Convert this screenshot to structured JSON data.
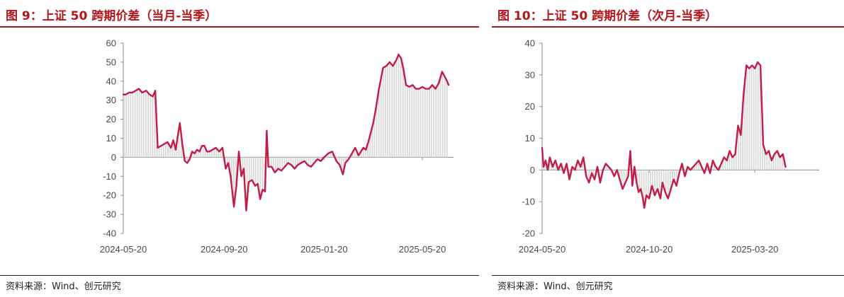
{
  "charts": [
    {
      "title": "图 9：上证 50 跨期价差（当月-当季）",
      "source": "资料来源：Wind、创元研究"
    },
    {
      "title": "图 10：上证 50 跨期价差（次月-当季）",
      "source": "资料来源：Wind、创元研究"
    }
  ],
  "chart_data": [
    {
      "type": "line",
      "title": "图 9：上证 50 跨期价差（当月-当季）",
      "ylim": [
        -40,
        60
      ],
      "yticks": [
        -40,
        -30,
        -20,
        -10,
        0,
        10,
        20,
        30,
        40,
        50,
        60
      ],
      "xlim": [
        "2024-05-20",
        "2025-06-27"
      ],
      "xticks": [
        "2024-05-20",
        "2024-09-20",
        "2025-01-20",
        "2025-05-20"
      ],
      "grid": false,
      "fill": "bars-to-zero",
      "colors": {
        "line": "#c21d49",
        "bars": "#d9d9d9"
      },
      "series": [
        {
          "points": [
            [
              "2024-05-20",
              33
            ],
            [
              "2024-05-23",
              33
            ],
            [
              "2024-05-27",
              34
            ],
            [
              "2024-05-31",
              34
            ],
            [
              "2024-06-04",
              35
            ],
            [
              "2024-06-08",
              36
            ],
            [
              "2024-06-12",
              34
            ],
            [
              "2024-06-17",
              35
            ],
            [
              "2024-06-21",
              33
            ],
            [
              "2024-06-25",
              32
            ],
            [
              "2024-06-28",
              35
            ],
            [
              "2024-07-01",
              5
            ],
            [
              "2024-07-05",
              6
            ],
            [
              "2024-07-09",
              7
            ],
            [
              "2024-07-13",
              8
            ],
            [
              "2024-07-17",
              5
            ],
            [
              "2024-07-20",
              9
            ],
            [
              "2024-07-23",
              4
            ],
            [
              "2024-07-25",
              10
            ],
            [
              "2024-07-28",
              18
            ],
            [
              "2024-07-31",
              7
            ],
            [
              "2024-08-03",
              -2
            ],
            [
              "2024-08-06",
              -3
            ],
            [
              "2024-08-09",
              -1
            ],
            [
              "2024-08-12",
              3
            ],
            [
              "2024-08-15",
              2
            ],
            [
              "2024-08-18",
              4
            ],
            [
              "2024-08-21",
              3
            ],
            [
              "2024-08-24",
              6
            ],
            [
              "2024-08-27",
              6
            ],
            [
              "2024-08-30",
              3
            ],
            [
              "2024-09-02",
              3
            ],
            [
              "2024-09-06",
              4
            ],
            [
              "2024-09-10",
              5
            ],
            [
              "2024-09-14",
              3
            ],
            [
              "2024-09-18",
              5
            ],
            [
              "2024-09-22",
              -6
            ],
            [
              "2024-09-25",
              -3
            ],
            [
              "2024-09-28",
              -10
            ],
            [
              "2024-10-02",
              -26
            ],
            [
              "2024-10-05",
              -15
            ],
            [
              "2024-10-08",
              3
            ],
            [
              "2024-10-11",
              -10
            ],
            [
              "2024-10-14",
              -6
            ],
            [
              "2024-10-17",
              -28
            ],
            [
              "2024-10-20",
              -13
            ],
            [
              "2024-10-24",
              -12
            ],
            [
              "2024-10-28",
              -15
            ],
            [
              "2024-10-31",
              -14
            ],
            [
              "2024-11-03",
              -22
            ],
            [
              "2024-11-06",
              -17
            ],
            [
              "2024-11-09",
              -18
            ],
            [
              "2024-11-11",
              14
            ],
            [
              "2024-11-13",
              -5
            ],
            [
              "2024-11-17",
              -5
            ],
            [
              "2024-11-21",
              -8
            ],
            [
              "2024-11-25",
              -6
            ],
            [
              "2024-11-29",
              -7
            ],
            [
              "2024-12-03",
              -5
            ],
            [
              "2024-12-07",
              -3
            ],
            [
              "2024-12-11",
              -4
            ],
            [
              "2024-12-15",
              -6
            ],
            [
              "2024-12-19",
              -4
            ],
            [
              "2024-12-23",
              -3
            ],
            [
              "2024-12-27",
              -2
            ],
            [
              "2024-12-31",
              -4
            ],
            [
              "2025-01-04",
              -5
            ],
            [
              "2025-01-08",
              -3
            ],
            [
              "2025-01-12",
              -1
            ],
            [
              "2025-01-16",
              -2
            ],
            [
              "2025-01-20",
              0
            ],
            [
              "2025-01-25",
              2
            ],
            [
              "2025-01-30",
              3
            ],
            [
              "2025-02-04",
              -2
            ],
            [
              "2025-02-08",
              -4
            ],
            [
              "2025-02-12",
              -9
            ],
            [
              "2025-02-15",
              -3
            ],
            [
              "2025-02-19",
              -1
            ],
            [
              "2025-02-23",
              2
            ],
            [
              "2025-02-27",
              5
            ],
            [
              "2025-03-03",
              1
            ],
            [
              "2025-03-06",
              3
            ],
            [
              "2025-03-09",
              5
            ],
            [
              "2025-03-12",
              4
            ],
            [
              "2025-03-15",
              8
            ],
            [
              "2025-03-18",
              13
            ],
            [
              "2025-03-21",
              18
            ],
            [
              "2025-03-24",
              25
            ],
            [
              "2025-03-28",
              36
            ],
            [
              "2025-04-02",
              47
            ],
            [
              "2025-04-06",
              48
            ],
            [
              "2025-04-10",
              50
            ],
            [
              "2025-04-14",
              48
            ],
            [
              "2025-04-18",
              51
            ],
            [
              "2025-04-21",
              54
            ],
            [
              "2025-04-24",
              52
            ],
            [
              "2025-04-27",
              46
            ],
            [
              "2025-04-30",
              38
            ],
            [
              "2025-05-04",
              37
            ],
            [
              "2025-05-08",
              38
            ],
            [
              "2025-05-12",
              36
            ],
            [
              "2025-05-16",
              36
            ],
            [
              "2025-05-20",
              37
            ],
            [
              "2025-05-24",
              36
            ],
            [
              "2025-05-28",
              36
            ],
            [
              "2025-06-01",
              38
            ],
            [
              "2025-06-05",
              36
            ],
            [
              "2025-06-09",
              39
            ],
            [
              "2025-06-13",
              45
            ],
            [
              "2025-06-18",
              41
            ],
            [
              "2025-06-21",
              38
            ]
          ]
        }
      ]
    },
    {
      "type": "line",
      "title": "图 10：上证 50 跨期价差（次月-当季）",
      "ylim": [
        -20,
        40
      ],
      "yticks": [
        -20,
        -10,
        0,
        10,
        20,
        30,
        40
      ],
      "xlim": [
        "2024-05-20",
        "2025-06-20"
      ],
      "xticks": [
        "2024-05-20",
        "2024-10-20",
        "2025-03-20"
      ],
      "grid": false,
      "fill": "bars-to-zero",
      "colors": {
        "line": "#c21d49",
        "bars": "#d9d9d9"
      },
      "series": [
        {
          "points": [
            [
              "2024-05-20",
              7
            ],
            [
              "2024-05-22",
              1
            ],
            [
              "2024-05-25",
              3
            ],
            [
              "2024-05-28",
              0
            ],
            [
              "2024-05-31",
              4
            ],
            [
              "2024-06-04",
              1
            ],
            [
              "2024-06-08",
              3
            ],
            [
              "2024-06-12",
              0
            ],
            [
              "2024-06-16",
              2
            ],
            [
              "2024-06-20",
              -1
            ],
            [
              "2024-06-24",
              2
            ],
            [
              "2024-06-28",
              -3
            ],
            [
              "2024-07-02",
              1
            ],
            [
              "2024-07-06",
              0
            ],
            [
              "2024-07-10",
              3
            ],
            [
              "2024-07-14",
              1
            ],
            [
              "2024-07-18",
              4
            ],
            [
              "2024-07-22",
              -2
            ],
            [
              "2024-07-26",
              -4
            ],
            [
              "2024-07-30",
              -1
            ],
            [
              "2024-08-03",
              -3
            ],
            [
              "2024-08-07",
              1
            ],
            [
              "2024-08-11",
              -4
            ],
            [
              "2024-08-15",
              0
            ],
            [
              "2024-08-19",
              2
            ],
            [
              "2024-08-23",
              1
            ],
            [
              "2024-08-27",
              0
            ],
            [
              "2024-08-31",
              -2
            ],
            [
              "2024-09-04",
              0
            ],
            [
              "2024-09-08",
              -3
            ],
            [
              "2024-09-12",
              -6
            ],
            [
              "2024-09-16",
              -4
            ],
            [
              "2024-09-20",
              -2
            ],
            [
              "2024-09-23",
              6
            ],
            [
              "2024-09-26",
              -5
            ],
            [
              "2024-09-29",
              1
            ],
            [
              "2024-10-02",
              -4
            ],
            [
              "2024-10-05",
              -7
            ],
            [
              "2024-10-08",
              -6
            ],
            [
              "2024-10-11",
              -9
            ],
            [
              "2024-10-13",
              -12
            ],
            [
              "2024-10-16",
              -8
            ],
            [
              "2024-10-20",
              -9
            ],
            [
              "2024-10-24",
              -5
            ],
            [
              "2024-10-28",
              -8
            ],
            [
              "2024-11-01",
              -6
            ],
            [
              "2024-11-05",
              -9
            ],
            [
              "2024-11-08",
              -4
            ],
            [
              "2024-11-12",
              -7
            ],
            [
              "2024-11-16",
              -9
            ],
            [
              "2024-11-20",
              -6
            ],
            [
              "2024-11-24",
              -3
            ],
            [
              "2024-11-28",
              -5
            ],
            [
              "2024-12-02",
              -1
            ],
            [
              "2024-12-06",
              2
            ],
            [
              "2024-12-10",
              -2
            ],
            [
              "2024-12-14",
              1
            ],
            [
              "2024-12-18",
              0
            ],
            [
              "2024-12-22",
              1
            ],
            [
              "2024-12-26",
              2
            ],
            [
              "2024-12-30",
              3
            ],
            [
              "2025-01-03",
              1
            ],
            [
              "2025-01-07",
              -1
            ],
            [
              "2025-01-11",
              2
            ],
            [
              "2025-01-15",
              -1
            ],
            [
              "2025-01-19",
              3
            ],
            [
              "2025-01-23",
              1
            ],
            [
              "2025-01-27",
              0
            ],
            [
              "2025-01-31",
              2
            ],
            [
              "2025-02-04",
              4
            ],
            [
              "2025-02-08",
              3
            ],
            [
              "2025-02-12",
              6
            ],
            [
              "2025-02-16",
              4
            ],
            [
              "2025-02-20",
              5
            ],
            [
              "2025-02-24",
              14
            ],
            [
              "2025-02-28",
              11
            ],
            [
              "2025-03-04",
              24
            ],
            [
              "2025-03-08",
              33
            ],
            [
              "2025-03-12",
              32
            ],
            [
              "2025-03-16",
              33
            ],
            [
              "2025-03-20",
              32
            ],
            [
              "2025-03-24",
              34
            ],
            [
              "2025-03-28",
              33
            ],
            [
              "2025-04-01",
              8
            ],
            [
              "2025-04-05",
              5
            ],
            [
              "2025-04-09",
              6
            ],
            [
              "2025-04-13",
              3
            ],
            [
              "2025-04-17",
              5
            ],
            [
              "2025-04-21",
              6
            ],
            [
              "2025-04-25",
              4
            ],
            [
              "2025-04-29",
              5
            ],
            [
              "2025-05-03",
              1
            ]
          ]
        }
      ]
    }
  ]
}
